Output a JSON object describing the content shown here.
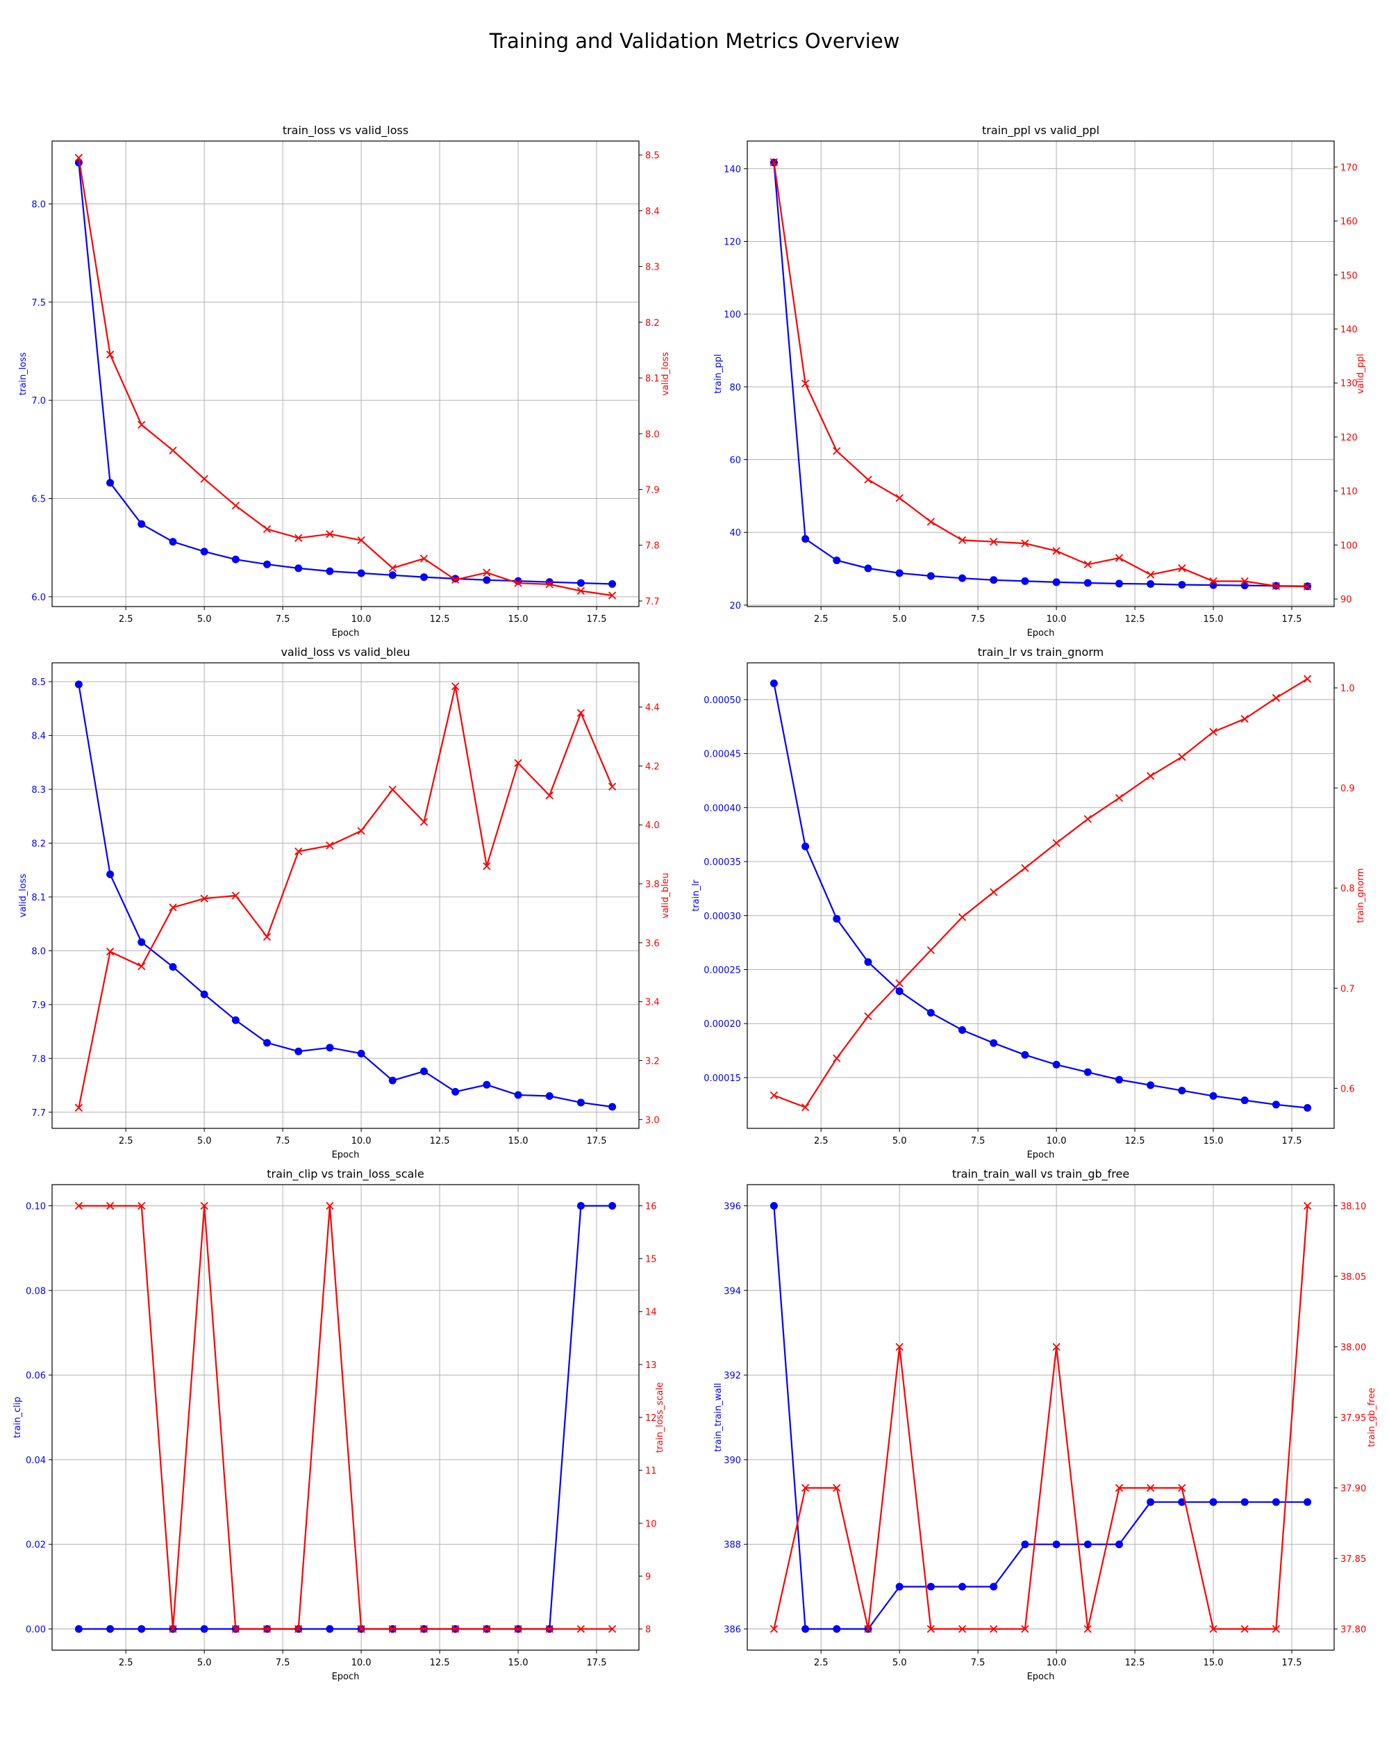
{
  "figure": {
    "title": "Training and Validation Metrics Overview"
  },
  "chart_data": [
    {
      "type": "line",
      "title": "train_loss vs valid_loss",
      "xlabel": "Epoch",
      "x": [
        1,
        2,
        3,
        4,
        5,
        6,
        7,
        8,
        9,
        10,
        11,
        12,
        13,
        14,
        15,
        16,
        17,
        18
      ],
      "xlim": [
        0.15,
        18.85
      ],
      "xticks": [
        "2.5",
        "5.0",
        "7.5",
        "10.0",
        "12.5",
        "15.0",
        "17.5"
      ],
      "left": {
        "name": "train_loss",
        "ylabel": "train_loss",
        "color": "#0000ff",
        "marker": "circle",
        "ylim": [
          5.95,
          8.32
        ],
        "yticks": [
          "6.0",
          "6.5",
          "7.0",
          "7.5",
          "8.0"
        ],
        "values": [
          8.21,
          6.58,
          6.37,
          6.28,
          6.23,
          6.19,
          6.165,
          6.145,
          6.13,
          6.12,
          6.11,
          6.1,
          6.092,
          6.085,
          6.08,
          6.075,
          6.07,
          6.065
        ]
      },
      "right": {
        "name": "valid_loss",
        "ylabel": "valid_loss",
        "color": "#ff0000",
        "marker": "x",
        "ylim": [
          7.69,
          8.525
        ],
        "yticks": [
          "7.7",
          "7.8",
          "7.9",
          "8.0",
          "8.1",
          "8.2",
          "8.3",
          "8.4",
          "8.5"
        ],
        "values": [
          8.495,
          8.142,
          8.016,
          7.97,
          7.919,
          7.871,
          7.829,
          7.813,
          7.82,
          7.809,
          7.759,
          7.776,
          7.738,
          7.751,
          7.732,
          7.73,
          7.718,
          7.71
        ]
      }
    },
    {
      "type": "line",
      "title": "train_ppl vs valid_ppl",
      "xlabel": "Epoch",
      "x": [
        1,
        2,
        3,
        4,
        5,
        6,
        7,
        8,
        9,
        10,
        11,
        12,
        13,
        14,
        15,
        16,
        17,
        18
      ],
      "xlim": [
        0.15,
        18.85
      ],
      "xticks": [
        "2.5",
        "5.0",
        "7.5",
        "10.0",
        "12.5",
        "15.0",
        "17.5"
      ],
      "left": {
        "name": "train_ppl",
        "ylabel": "train_ppl",
        "color": "#0000ff",
        "marker": "circle",
        "ylim": [
          19.6,
          147.6
        ],
        "yticks": [
          "20",
          "40",
          "60",
          "80",
          "100",
          "120",
          "140"
        ],
        "values": [
          141.7,
          38.2,
          32.3,
          30.1,
          28.8,
          28.0,
          27.4,
          26.9,
          26.6,
          26.3,
          26.1,
          25.9,
          25.8,
          25.6,
          25.5,
          25.4,
          25.3,
          25.2
        ]
      },
      "right": {
        "name": "valid_ppl",
        "ylabel": "valid_ppl",
        "color": "#ff0000",
        "marker": "x",
        "ylim": [
          88.6,
          174.8
        ],
        "yticks": [
          "90",
          "100",
          "110",
          "120",
          "130",
          "140",
          "150",
          "160",
          "170"
        ],
        "values": [
          170.9,
          129.9,
          117.4,
          112.1,
          108.7,
          104.3,
          100.9,
          100.6,
          100.3,
          98.9,
          96.4,
          97.6,
          94.5,
          95.7,
          93.3,
          93.3,
          92.4,
          92.3
        ]
      }
    },
    {
      "type": "line",
      "title": "valid_loss vs valid_bleu",
      "xlabel": "Epoch",
      "x": [
        1,
        2,
        3,
        4,
        5,
        6,
        7,
        8,
        9,
        10,
        11,
        12,
        13,
        14,
        15,
        16,
        17,
        18
      ],
      "xlim": [
        0.15,
        18.85
      ],
      "xticks": [
        "2.5",
        "5.0",
        "7.5",
        "10.0",
        "12.5",
        "15.0",
        "17.5"
      ],
      "left": {
        "name": "valid_loss",
        "ylabel": "valid_loss",
        "color": "#0000ff",
        "marker": "circle",
        "ylim": [
          7.67,
          8.535
        ],
        "yticks": [
          "7.7",
          "7.8",
          "7.9",
          "8.0",
          "8.1",
          "8.2",
          "8.3",
          "8.4",
          "8.5"
        ],
        "values": [
          8.495,
          8.142,
          8.016,
          7.97,
          7.919,
          7.871,
          7.829,
          7.813,
          7.82,
          7.809,
          7.759,
          7.776,
          7.738,
          7.751,
          7.732,
          7.73,
          7.718,
          7.71
        ]
      },
      "right": {
        "name": "valid_bleu",
        "ylabel": "valid_bleu",
        "color": "#ff0000",
        "marker": "x",
        "ylim": [
          2.97,
          4.55
        ],
        "yticks": [
          "3.0",
          "3.2",
          "3.4",
          "3.6",
          "3.8",
          "4.0",
          "4.2",
          "4.4"
        ],
        "values": [
          3.04,
          3.57,
          3.52,
          3.72,
          3.75,
          3.76,
          3.62,
          3.91,
          3.93,
          3.98,
          4.12,
          4.01,
          4.47,
          3.86,
          4.21,
          4.1,
          4.38,
          4.13
        ]
      }
    },
    {
      "type": "line",
      "title": "train_lr vs train_gnorm",
      "xlabel": "Epoch",
      "x": [
        1,
        2,
        3,
        4,
        5,
        6,
        7,
        8,
        9,
        10,
        11,
        12,
        13,
        14,
        15,
        16,
        17,
        18
      ],
      "xlim": [
        0.15,
        18.85
      ],
      "xticks": [
        "2.5",
        "5.0",
        "7.5",
        "10.0",
        "12.5",
        "15.0",
        "17.5"
      ],
      "left": {
        "name": "train_lr",
        "ylabel": "train_lr",
        "color": "#0000ff",
        "marker": "circle",
        "ylim": [
          0.000103,
          0.000534
        ],
        "yticks": [
          "0.00015",
          "0.00020",
          "0.00025",
          "0.00030",
          "0.00035",
          "0.00040",
          "0.00045",
          "0.00050"
        ],
        "values": [
          0.000515,
          0.000364,
          0.000297,
          0.000257,
          0.00023,
          0.00021,
          0.000194,
          0.000182,
          0.000171,
          0.000162,
          0.000155,
          0.000148,
          0.000143,
          0.000138,
          0.000133,
          0.000129,
          0.000125,
          0.000122
        ]
      },
      "right": {
        "name": "train_gnorm",
        "ylabel": "train_gnorm",
        "color": "#ff0000",
        "marker": "x",
        "ylim": [
          0.56,
          1.025
        ],
        "yticks": [
          "0.6",
          "0.7",
          "0.8",
          "0.9",
          "1.0"
        ],
        "values": [
          0.593,
          0.581,
          0.63,
          0.672,
          0.705,
          0.738,
          0.771,
          0.796,
          0.82,
          0.845,
          0.869,
          0.89,
          0.912,
          0.931,
          0.956,
          0.969,
          0.99,
          1.009
        ]
      }
    },
    {
      "type": "line",
      "title": "train_clip vs train_loss_scale",
      "xlabel": "Epoch",
      "x": [
        1,
        2,
        3,
        4,
        5,
        6,
        7,
        8,
        9,
        10,
        11,
        12,
        13,
        14,
        15,
        16,
        17,
        18
      ],
      "xlim": [
        0.15,
        18.85
      ],
      "xticks": [
        "2.5",
        "5.0",
        "7.5",
        "10.0",
        "12.5",
        "15.0",
        "17.5"
      ],
      "left": {
        "name": "train_clip",
        "ylabel": "train_clip",
        "color": "#0000ff",
        "marker": "circle",
        "ylim": [
          -0.005,
          0.105
        ],
        "yticks": [
          "0.00",
          "0.02",
          "0.04",
          "0.06",
          "0.08",
          "0.10"
        ],
        "values": [
          0,
          0,
          0,
          0,
          0,
          0,
          0,
          0,
          0,
          0,
          0,
          0,
          0,
          0,
          0,
          0,
          0.1,
          0.1
        ]
      },
      "right": {
        "name": "train_loss_scale",
        "ylabel": "train_loss_scale",
        "color": "#ff0000",
        "marker": "x",
        "ylim": [
          7.6,
          16.4
        ],
        "yticks": [
          "8",
          "9",
          "10",
          "11",
          "12",
          "13",
          "14",
          "15",
          "16"
        ],
        "values": [
          16,
          16,
          16,
          8,
          16,
          8,
          8,
          8,
          16,
          8,
          8,
          8,
          8,
          8,
          8,
          8,
          8,
          8
        ]
      }
    },
    {
      "type": "line",
      "title": "train_train_wall vs train_gb_free",
      "xlabel": "Epoch",
      "x": [
        1,
        2,
        3,
        4,
        5,
        6,
        7,
        8,
        9,
        10,
        11,
        12,
        13,
        14,
        15,
        16,
        17,
        18
      ],
      "xlim": [
        0.15,
        18.85
      ],
      "xticks": [
        "2.5",
        "5.0",
        "7.5",
        "10.0",
        "12.5",
        "15.0",
        "17.5"
      ],
      "left": {
        "name": "train_train_wall",
        "ylabel": "train_train_wall",
        "color": "#0000ff",
        "marker": "circle",
        "ylim": [
          385.5,
          396.5
        ],
        "yticks": [
          "386",
          "388",
          "390",
          "392",
          "394",
          "396"
        ],
        "values": [
          396,
          386,
          386,
          386,
          387,
          387,
          387,
          387,
          388,
          388,
          388,
          388,
          389,
          389,
          389,
          389,
          389,
          389
        ]
      },
      "right": {
        "name": "train_gb_free",
        "ylabel": "train_gb_free",
        "color": "#ff0000",
        "marker": "x",
        "ylim": [
          37.785,
          38.115
        ],
        "yticks": [
          "37.80",
          "37.85",
          "37.90",
          "37.95",
          "38.00",
          "38.05",
          "38.10"
        ],
        "values": [
          37.8,
          37.9,
          37.9,
          37.8,
          38.0,
          37.8,
          37.8,
          37.8,
          37.8,
          38.0,
          37.8,
          37.9,
          37.9,
          37.9,
          37.8,
          37.8,
          37.8,
          38.1
        ]
      }
    }
  ]
}
